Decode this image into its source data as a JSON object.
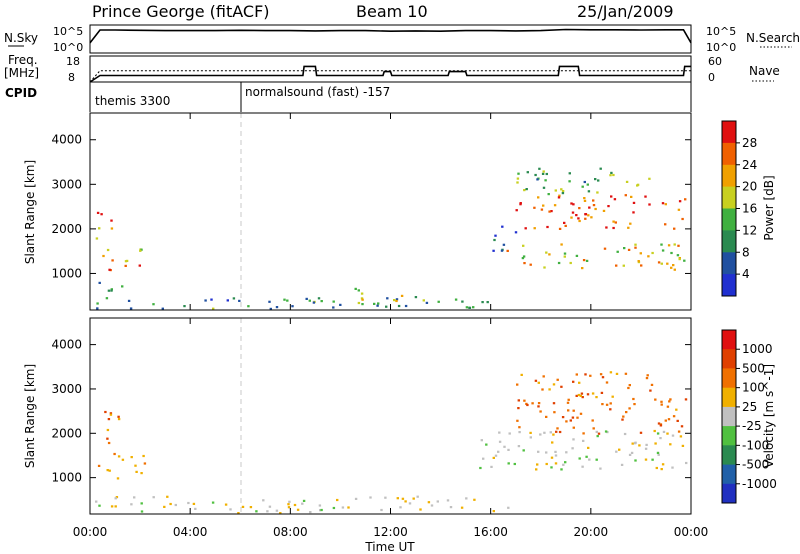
{
  "header": {
    "station": "Prince George (fitACF)",
    "beam": "Beam 10",
    "date": "25/Jan/2009"
  },
  "strip_labels": {
    "nsky": "N.Sky",
    "nsearch": "N.Search",
    "freq_line1": "Freq.",
    "freq_line2": "[MHz]",
    "nave": "Nave",
    "cpid": "CPID"
  },
  "strip_ticks": {
    "nsky_top": "10^5",
    "nsky_bottom": "10^0",
    "nsearch_top": "10^5",
    "nsearch_bottom": "10^0",
    "freq_top": "18",
    "freq_bottom": "8",
    "nave_top": "60",
    "nave_bottom": "0"
  },
  "cpid_segments": [
    {
      "label": "themis 3300",
      "start_hour": 0
    },
    {
      "label": "normalsound (fast) -157",
      "start_hour": 6
    }
  ],
  "colors": {
    "power_scale": [
      "#2030d0",
      "#2050a0",
      "#2a8a50",
      "#40b040",
      "#c8d020",
      "#f0a000",
      "#f06000",
      "#e01010"
    ],
    "velocity_scale": [
      "#2030c0",
      "#2060a8",
      "#2a8a50",
      "#50c040",
      "#c0c0c0",
      "#f0b000",
      "#f07000",
      "#e04000",
      "#e01010"
    ]
  },
  "chart_data": [
    {
      "type": "line",
      "panel": "noise",
      "ylabel": "N.Sky",
      "ylabel_right": "N.Search",
      "x_hours": [
        0,
        0.4,
        1,
        2,
        3,
        4,
        5,
        6,
        7,
        8,
        9,
        10,
        11,
        12,
        13,
        14,
        15,
        16,
        17,
        18,
        19,
        20,
        21,
        22,
        23,
        23.7,
        24
      ],
      "series": [
        {
          "name": "N.Sky",
          "values": [
            1.8,
            4.1,
            4.1,
            4.05,
            4.0,
            4.0,
            4.0,
            4.05,
            4.0,
            4.0,
            3.95,
            4.0,
            4.0,
            3.9,
            3.95,
            3.9,
            4.0,
            4.0,
            3.95,
            4.0,
            4.2,
            4.15,
            4.15,
            4.1,
            4.15,
            4.15,
            1.8
          ]
        }
      ]
    },
    {
      "type": "line",
      "panel": "frequency",
      "ylabel": "Freq. [MHz]",
      "ylabel_right": "Nave",
      "ylim": [
        8,
        18
      ],
      "ylim_right": [
        0,
        60
      ],
      "x_hours": [
        0,
        0.4,
        6,
        8.5,
        8.55,
        9,
        9.05,
        11.7,
        11.75,
        12,
        12.05,
        14.3,
        14.35,
        15,
        15.05,
        18.7,
        18.75,
        19.5,
        19.55,
        23.7,
        23.75,
        24
      ],
      "series": [
        {
          "name": "Freq.",
          "values": [
            8,
            10.5,
            10.5,
            10.5,
            14,
            14,
            10.5,
            10.5,
            12,
            12,
            10.5,
            10.5,
            12,
            12,
            10.5,
            10.5,
            14,
            14,
            10.5,
            10.5,
            14,
            14
          ]
        },
        {
          "name": "Nave",
          "values": [
            0,
            26,
            26,
            26,
            26,
            26,
            26,
            26,
            26,
            26,
            26,
            26,
            26,
            26,
            26,
            26,
            26,
            26,
            26,
            26,
            26,
            26
          ]
        }
      ]
    },
    {
      "type": "heatmap",
      "panel": "power",
      "xlabel": "",
      "ylabel": "Slant Range [km]",
      "xlim_hours": [
        0,
        24
      ],
      "ylim": [
        180,
        4600
      ],
      "x_ticks": [
        "00:00",
        "04:00",
        "08:00",
        "12:00",
        "16:00",
        "20:00",
        "00:00"
      ],
      "y_ticks": [
        1000,
        2000,
        3000,
        4000
      ],
      "colorbar_label": "Power [dB]",
      "colorbar_ticks": [
        4,
        8,
        12,
        16,
        20,
        24,
        28
      ],
      "patches": [
        {
          "t0": 0.2,
          "t1": 1.0,
          "r0": 1800,
          "r1": 2500,
          "level": 0.85
        },
        {
          "t0": 0.3,
          "t1": 2.1,
          "r0": 1000,
          "r1": 1600,
          "level": 0.7
        },
        {
          "t0": 0.2,
          "t1": 1.3,
          "r0": 600,
          "r1": 1000,
          "level": 0.4
        },
        {
          "t0": 0.2,
          "t1": 16.9,
          "r0": 200,
          "r1": 500,
          "level": 0.3
        },
        {
          "t0": 10.5,
          "t1": 12.5,
          "r0": 250,
          "r1": 700,
          "level": 0.6
        },
        {
          "t0": 16.9,
          "t1": 23.8,
          "r0": 2000,
          "r1": 2800,
          "level": 0.9
        },
        {
          "t0": 16.0,
          "t1": 17.0,
          "r0": 1500,
          "r1": 2200,
          "level": 0.15
        },
        {
          "t0": 16.6,
          "t1": 23.8,
          "r0": 1100,
          "r1": 1700,
          "level": 0.6
        },
        {
          "t0": 17.0,
          "t1": 22.5,
          "r0": 2800,
          "r1": 3400,
          "level": 0.4
        }
      ]
    },
    {
      "type": "heatmap",
      "panel": "velocity",
      "xlabel": "Time UT",
      "ylabel": "Slant Range [km]",
      "xlim_hours": [
        0,
        24
      ],
      "ylim": [
        180,
        4600
      ],
      "x_ticks": [
        "00:00",
        "04:00",
        "08:00",
        "12:00",
        "16:00",
        "20:00",
        "00:00"
      ],
      "y_ticks": [
        1000,
        2000,
        3000,
        4000
      ],
      "colorbar_label": "Velocity [m s^-1]",
      "colorbar_ticks": [
        "1000",
        "500",
        "100",
        "25",
        "-25",
        "-100",
        "-500",
        "-1000"
      ],
      "patches": [
        {
          "t0": 0.2,
          "t1": 1.2,
          "r0": 1800,
          "r1": 2600,
          "level": -0.5
        },
        {
          "t0": 0.3,
          "t1": 2.2,
          "r0": 1000,
          "r1": 1600,
          "level": -0.3
        },
        {
          "t0": 0.2,
          "t1": 16.9,
          "r0": 200,
          "r1": 600,
          "level": -0.05
        },
        {
          "t0": 16.9,
          "t1": 23.8,
          "r0": 2000,
          "r1": 2800,
          "level": -0.6
        },
        {
          "t0": 15.5,
          "t1": 23.9,
          "r0": 1200,
          "r1": 2100,
          "level": 0
        },
        {
          "t0": 17.0,
          "t1": 22.5,
          "r0": 2800,
          "r1": 3400,
          "level": -0.5
        }
      ]
    }
  ]
}
